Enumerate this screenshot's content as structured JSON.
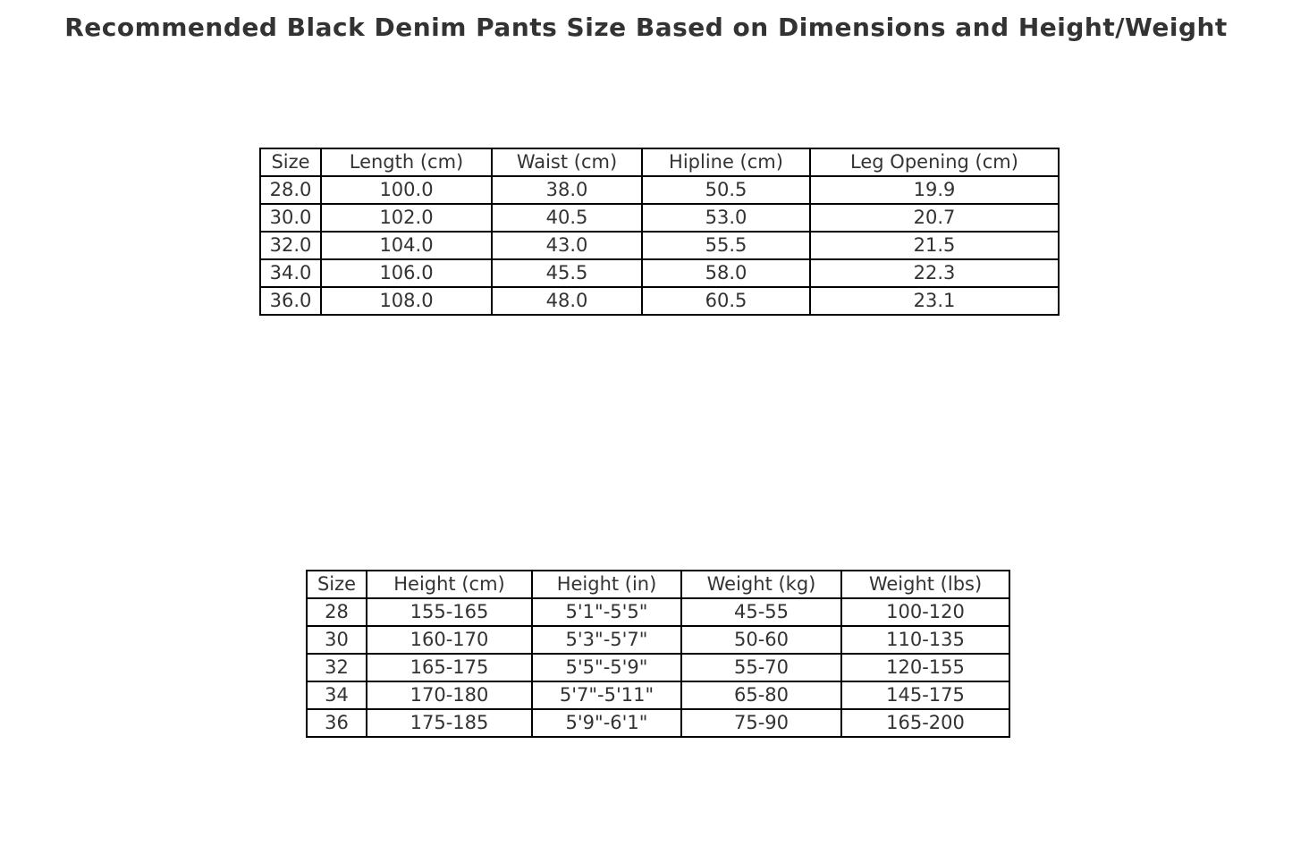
{
  "title": "Recommended Black Denim Pants Size Based on Dimensions and Height/Weight",
  "colors": {
    "background": "#ffffff",
    "text": "#333333",
    "table_border": "#000000"
  },
  "chart_data": [
    {
      "type": "table",
      "name": "size-dimensions",
      "columns": [
        "Size",
        "Length (cm)",
        "Waist (cm)",
        "Hipline (cm)",
        "Leg Opening (cm)"
      ],
      "rows": [
        [
          "28.0",
          "100.0",
          "38.0",
          "50.5",
          "19.9"
        ],
        [
          "30.0",
          "102.0",
          "40.5",
          "53.0",
          "20.7"
        ],
        [
          "32.0",
          "104.0",
          "43.0",
          "55.5",
          "21.5"
        ],
        [
          "34.0",
          "106.0",
          "45.5",
          "58.0",
          "22.3"
        ],
        [
          "36.0",
          "108.0",
          "48.0",
          "60.5",
          "23.1"
        ]
      ]
    },
    {
      "type": "table",
      "name": "size-height-weight",
      "columns": [
        "Size",
        "Height (cm)",
        "Height (in)",
        "Weight (kg)",
        "Weight (lbs)"
      ],
      "rows": [
        [
          "28",
          "155-165",
          "5'1\"-5'5\"",
          "45-55",
          "100-120"
        ],
        [
          "30",
          "160-170",
          "5'3\"-5'7\"",
          "50-60",
          "110-135"
        ],
        [
          "32",
          "165-175",
          "5'5\"-5'9\"",
          "55-70",
          "120-155"
        ],
        [
          "34",
          "170-180",
          "5'7\"-5'11\"",
          "65-80",
          "145-175"
        ],
        [
          "36",
          "175-185",
          "5'9\"-6'1\"",
          "75-90",
          "165-200"
        ]
      ]
    }
  ]
}
